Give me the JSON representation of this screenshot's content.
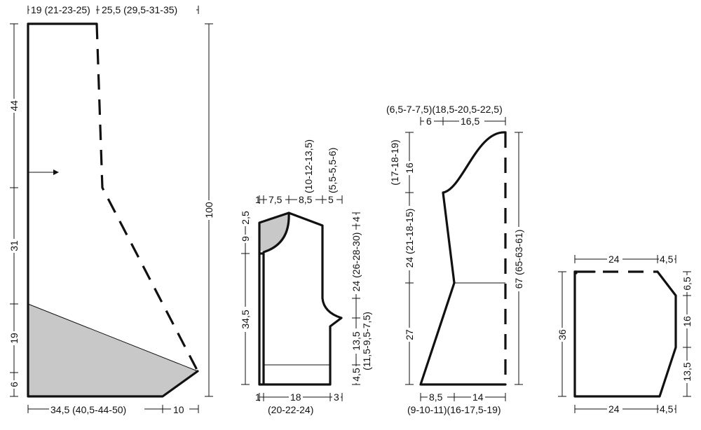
{
  "piece1": {
    "top_left": "19 (21-23-25)",
    "top_right": "25,5 (29,5-31-35)",
    "height_total": "100",
    "side_44": "44",
    "side_31": "31",
    "side_19": "19",
    "side_6": "6",
    "bottom_left": "34,5 (40,5-44-50)",
    "bottom_right": "10"
  },
  "piece2": {
    "top_1": "1",
    "top_7_5": "7,5",
    "top_8_5": "8,5",
    "top_5": "5",
    "top_8_5_sizes": "(10-12-13,5)",
    "top_5_sizes": "(5,5-5,5-6)",
    "left_2_5": "2,5",
    "left_9": "9",
    "left_34_5": "34,5",
    "right_4": "4",
    "right_24": "24 (26-28-30)",
    "right_13_5": "13,5",
    "right_13_5_sizes": "(11,5-9,5-7,5)",
    "right_4_5": "4,5",
    "bottom_1": "1",
    "bottom_18": "18",
    "bottom_3": "3",
    "bottom_sizes": "(20-22-24)"
  },
  "piece3": {
    "top_sizes": "(6,5-7-7,5)(18,5-20,5-22,5)",
    "top_6": "6",
    "top_16_5": "16,5",
    "left_16": "16",
    "left_16_sizes": "(17-18-19)",
    "left_24": "24 (21-18-15)",
    "left_27": "27",
    "right_67": "67 (65-63-61)",
    "bottom_8_5": "8,5",
    "bottom_14": "14",
    "bottom_sizes": "(9-10-11)(16-17,5-19)"
  },
  "piece4": {
    "top_24": "24",
    "top_4_5": "4,5",
    "left_36": "36",
    "right_6_5": "6,5",
    "right_16": "16",
    "right_13_5": "13,5",
    "bottom_24": "24",
    "bottom_4_5": "4,5"
  }
}
